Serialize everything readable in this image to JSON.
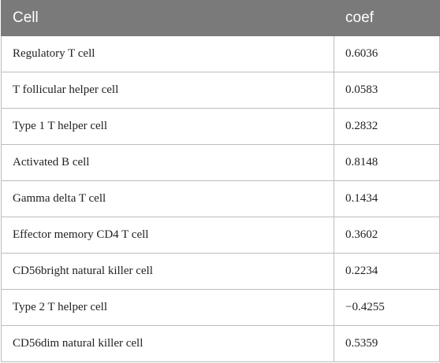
{
  "table": {
    "columns": [
      "Cell",
      "coef"
    ],
    "rows": [
      {
        "cell": "Regulatory T cell",
        "coef": "0.6036"
      },
      {
        "cell": "T follicular helper cell",
        "coef": "0.0583"
      },
      {
        "cell": "Type 1 T helper cell",
        "coef": "0.2832"
      },
      {
        "cell": "Activated B cell",
        "coef": "0.8148"
      },
      {
        "cell": "Gamma delta T cell",
        "coef": "0.1434"
      },
      {
        "cell": "Effector memory CD4 T cell",
        "coef": "0.3602"
      },
      {
        "cell": "CD56bright natural killer cell",
        "coef": "0.2234"
      },
      {
        "cell": "Type 2 T helper cell",
        "coef": "−0.4255"
      },
      {
        "cell": "CD56dim natural killer cell",
        "coef": "0.5359"
      }
    ]
  },
  "colors": {
    "header_bg": "#7a7a7a",
    "header_text": "#ffffff",
    "border": "#bdbdbd"
  }
}
